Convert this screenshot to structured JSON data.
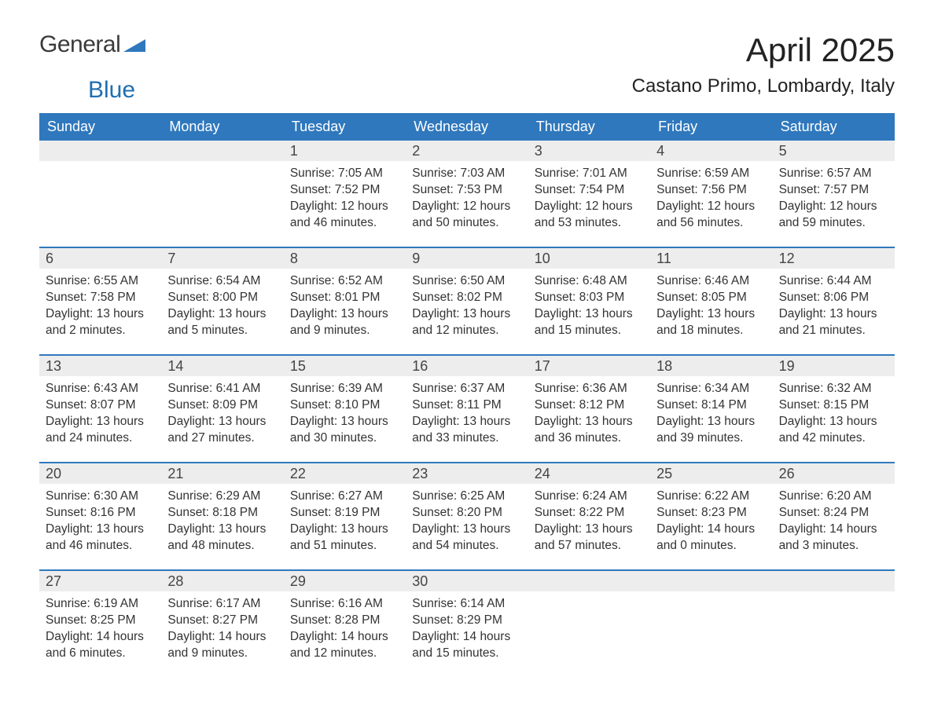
{
  "logo": {
    "word1": "General",
    "word2": "Blue",
    "color1": "#3b3b3b",
    "color2": "#1f6fb2",
    "icon_color": "#2f78bd"
  },
  "title": "April 2025",
  "location": "Castano Primo, Lombardy, Italy",
  "colors": {
    "header_bg": "#2f78bd",
    "header_text": "#ffffff",
    "daynum_bg": "#ededed",
    "row_border": "#2f78bd",
    "text": "#333333",
    "background": "#ffffff"
  },
  "typography": {
    "title_fontsize": 42,
    "location_fontsize": 24,
    "weekday_fontsize": 18,
    "daynum_fontsize": 18,
    "body_fontsize": 15.5,
    "font_family": "Arial"
  },
  "layout": {
    "columns": 7,
    "rows": 5,
    "cell_min_height": 135
  },
  "weekdays": [
    "Sunday",
    "Monday",
    "Tuesday",
    "Wednesday",
    "Thursday",
    "Friday",
    "Saturday"
  ],
  "weeks": [
    [
      {
        "empty": true
      },
      {
        "empty": true
      },
      {
        "day": "1",
        "sunrise": "Sunrise: 7:05 AM",
        "sunset": "Sunset: 7:52 PM",
        "daylight1": "Daylight: 12 hours",
        "daylight2": "and 46 minutes."
      },
      {
        "day": "2",
        "sunrise": "Sunrise: 7:03 AM",
        "sunset": "Sunset: 7:53 PM",
        "daylight1": "Daylight: 12 hours",
        "daylight2": "and 50 minutes."
      },
      {
        "day": "3",
        "sunrise": "Sunrise: 7:01 AM",
        "sunset": "Sunset: 7:54 PM",
        "daylight1": "Daylight: 12 hours",
        "daylight2": "and 53 minutes."
      },
      {
        "day": "4",
        "sunrise": "Sunrise: 6:59 AM",
        "sunset": "Sunset: 7:56 PM",
        "daylight1": "Daylight: 12 hours",
        "daylight2": "and 56 minutes."
      },
      {
        "day": "5",
        "sunrise": "Sunrise: 6:57 AM",
        "sunset": "Sunset: 7:57 PM",
        "daylight1": "Daylight: 12 hours",
        "daylight2": "and 59 minutes."
      }
    ],
    [
      {
        "day": "6",
        "sunrise": "Sunrise: 6:55 AM",
        "sunset": "Sunset: 7:58 PM",
        "daylight1": "Daylight: 13 hours",
        "daylight2": "and 2 minutes."
      },
      {
        "day": "7",
        "sunrise": "Sunrise: 6:54 AM",
        "sunset": "Sunset: 8:00 PM",
        "daylight1": "Daylight: 13 hours",
        "daylight2": "and 5 minutes."
      },
      {
        "day": "8",
        "sunrise": "Sunrise: 6:52 AM",
        "sunset": "Sunset: 8:01 PM",
        "daylight1": "Daylight: 13 hours",
        "daylight2": "and 9 minutes."
      },
      {
        "day": "9",
        "sunrise": "Sunrise: 6:50 AM",
        "sunset": "Sunset: 8:02 PM",
        "daylight1": "Daylight: 13 hours",
        "daylight2": "and 12 minutes."
      },
      {
        "day": "10",
        "sunrise": "Sunrise: 6:48 AM",
        "sunset": "Sunset: 8:03 PM",
        "daylight1": "Daylight: 13 hours",
        "daylight2": "and 15 minutes."
      },
      {
        "day": "11",
        "sunrise": "Sunrise: 6:46 AM",
        "sunset": "Sunset: 8:05 PM",
        "daylight1": "Daylight: 13 hours",
        "daylight2": "and 18 minutes."
      },
      {
        "day": "12",
        "sunrise": "Sunrise: 6:44 AM",
        "sunset": "Sunset: 8:06 PM",
        "daylight1": "Daylight: 13 hours",
        "daylight2": "and 21 minutes."
      }
    ],
    [
      {
        "day": "13",
        "sunrise": "Sunrise: 6:43 AM",
        "sunset": "Sunset: 8:07 PM",
        "daylight1": "Daylight: 13 hours",
        "daylight2": "and 24 minutes."
      },
      {
        "day": "14",
        "sunrise": "Sunrise: 6:41 AM",
        "sunset": "Sunset: 8:09 PM",
        "daylight1": "Daylight: 13 hours",
        "daylight2": "and 27 minutes."
      },
      {
        "day": "15",
        "sunrise": "Sunrise: 6:39 AM",
        "sunset": "Sunset: 8:10 PM",
        "daylight1": "Daylight: 13 hours",
        "daylight2": "and 30 minutes."
      },
      {
        "day": "16",
        "sunrise": "Sunrise: 6:37 AM",
        "sunset": "Sunset: 8:11 PM",
        "daylight1": "Daylight: 13 hours",
        "daylight2": "and 33 minutes."
      },
      {
        "day": "17",
        "sunrise": "Sunrise: 6:36 AM",
        "sunset": "Sunset: 8:12 PM",
        "daylight1": "Daylight: 13 hours",
        "daylight2": "and 36 minutes."
      },
      {
        "day": "18",
        "sunrise": "Sunrise: 6:34 AM",
        "sunset": "Sunset: 8:14 PM",
        "daylight1": "Daylight: 13 hours",
        "daylight2": "and 39 minutes."
      },
      {
        "day": "19",
        "sunrise": "Sunrise: 6:32 AM",
        "sunset": "Sunset: 8:15 PM",
        "daylight1": "Daylight: 13 hours",
        "daylight2": "and 42 minutes."
      }
    ],
    [
      {
        "day": "20",
        "sunrise": "Sunrise: 6:30 AM",
        "sunset": "Sunset: 8:16 PM",
        "daylight1": "Daylight: 13 hours",
        "daylight2": "and 46 minutes."
      },
      {
        "day": "21",
        "sunrise": "Sunrise: 6:29 AM",
        "sunset": "Sunset: 8:18 PM",
        "daylight1": "Daylight: 13 hours",
        "daylight2": "and 48 minutes."
      },
      {
        "day": "22",
        "sunrise": "Sunrise: 6:27 AM",
        "sunset": "Sunset: 8:19 PM",
        "daylight1": "Daylight: 13 hours",
        "daylight2": "and 51 minutes."
      },
      {
        "day": "23",
        "sunrise": "Sunrise: 6:25 AM",
        "sunset": "Sunset: 8:20 PM",
        "daylight1": "Daylight: 13 hours",
        "daylight2": "and 54 minutes."
      },
      {
        "day": "24",
        "sunrise": "Sunrise: 6:24 AM",
        "sunset": "Sunset: 8:22 PM",
        "daylight1": "Daylight: 13 hours",
        "daylight2": "and 57 minutes."
      },
      {
        "day": "25",
        "sunrise": "Sunrise: 6:22 AM",
        "sunset": "Sunset: 8:23 PM",
        "daylight1": "Daylight: 14 hours",
        "daylight2": "and 0 minutes."
      },
      {
        "day": "26",
        "sunrise": "Sunrise: 6:20 AM",
        "sunset": "Sunset: 8:24 PM",
        "daylight1": "Daylight: 14 hours",
        "daylight2": "and 3 minutes."
      }
    ],
    [
      {
        "day": "27",
        "sunrise": "Sunrise: 6:19 AM",
        "sunset": "Sunset: 8:25 PM",
        "daylight1": "Daylight: 14 hours",
        "daylight2": "and 6 minutes."
      },
      {
        "day": "28",
        "sunrise": "Sunrise: 6:17 AM",
        "sunset": "Sunset: 8:27 PM",
        "daylight1": "Daylight: 14 hours",
        "daylight2": "and 9 minutes."
      },
      {
        "day": "29",
        "sunrise": "Sunrise: 6:16 AM",
        "sunset": "Sunset: 8:28 PM",
        "daylight1": "Daylight: 14 hours",
        "daylight2": "and 12 minutes."
      },
      {
        "day": "30",
        "sunrise": "Sunrise: 6:14 AM",
        "sunset": "Sunset: 8:29 PM",
        "daylight1": "Daylight: 14 hours",
        "daylight2": "and 15 minutes."
      },
      {
        "empty": true
      },
      {
        "empty": true
      },
      {
        "empty": true
      }
    ]
  ]
}
